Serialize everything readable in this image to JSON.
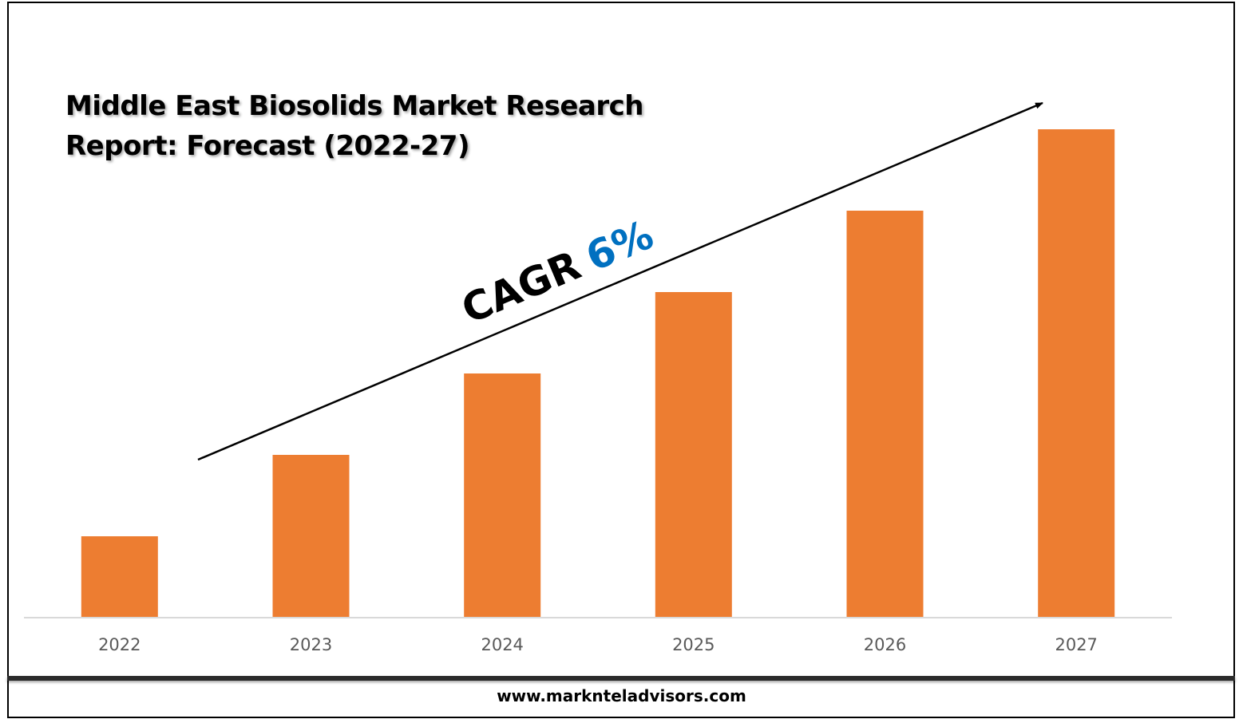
{
  "chart_data": {
    "type": "bar",
    "title_lines": [
      "Middle East Biosolids Market Research",
      "Report: Forecast (2022-27)"
    ],
    "categories": [
      "2022",
      "2023",
      "2024",
      "2025",
      "2026",
      "2027"
    ],
    "values": [
      1,
      2,
      3,
      4,
      5,
      6
    ],
    "ylim": [
      0,
      6
    ],
    "bar_color": "#ed7d31",
    "grid": false,
    "legend": "none",
    "annotation": {
      "label": "CAGR",
      "value": "6%",
      "value_color": "#0070c0"
    }
  },
  "footer": {
    "website": "www.marknteladvisors.com"
  }
}
